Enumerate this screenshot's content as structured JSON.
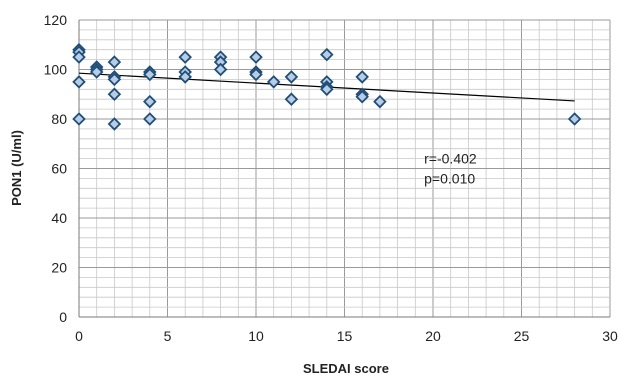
{
  "chart_data": {
    "type": "scatter",
    "title": "",
    "xlabel": "SLEDAI score",
    "ylabel": "PON1 (U/ml)",
    "xlim": [
      0,
      30
    ],
    "ylim": [
      0,
      120
    ],
    "xticks": [
      0,
      5,
      10,
      15,
      20,
      25,
      30
    ],
    "yticks": [
      0,
      20,
      40,
      60,
      80,
      100,
      120
    ],
    "x_tick_labels": [
      "0",
      "5",
      "10",
      "15",
      "20",
      "25",
      "30"
    ],
    "y_tick_labels": [
      "0",
      "20",
      "40",
      "60",
      "80",
      "100",
      "120"
    ],
    "grid": "major and minor",
    "marker": "diamond",
    "marker_color": "#1f4e79",
    "marker_fill": "#b8cce4",
    "points": [
      {
        "x": 0,
        "y": 108
      },
      {
        "x": 0,
        "y": 107
      },
      {
        "x": 0,
        "y": 105
      },
      {
        "x": 0,
        "y": 95
      },
      {
        "x": 0,
        "y": 80
      },
      {
        "x": 1,
        "y": 101
      },
      {
        "x": 1,
        "y": 100
      },
      {
        "x": 1,
        "y": 99
      },
      {
        "x": 2,
        "y": 103
      },
      {
        "x": 2,
        "y": 97
      },
      {
        "x": 2,
        "y": 96
      },
      {
        "x": 2,
        "y": 90
      },
      {
        "x": 2,
        "y": 78
      },
      {
        "x": 4,
        "y": 99
      },
      {
        "x": 4,
        "y": 98
      },
      {
        "x": 4,
        "y": 87
      },
      {
        "x": 4,
        "y": 80
      },
      {
        "x": 6,
        "y": 105
      },
      {
        "x": 6,
        "y": 99
      },
      {
        "x": 6,
        "y": 97
      },
      {
        "x": 8,
        "y": 105
      },
      {
        "x": 8,
        "y": 103
      },
      {
        "x": 8,
        "y": 100
      },
      {
        "x": 10,
        "y": 105
      },
      {
        "x": 10,
        "y": 99
      },
      {
        "x": 10,
        "y": 98
      },
      {
        "x": 11,
        "y": 95
      },
      {
        "x": 12,
        "y": 97
      },
      {
        "x": 12,
        "y": 88
      },
      {
        "x": 14,
        "y": 106
      },
      {
        "x": 14,
        "y": 95
      },
      {
        "x": 14,
        "y": 93
      },
      {
        "x": 14,
        "y": 92
      },
      {
        "x": 16,
        "y": 97
      },
      {
        "x": 16,
        "y": 90
      },
      {
        "x": 16,
        "y": 89
      },
      {
        "x": 17,
        "y": 87
      },
      {
        "x": 28,
        "y": 80
      }
    ],
    "trendline": {
      "x": [
        0,
        28
      ],
      "y": [
        98.5,
        87.3
      ],
      "color": "#000000"
    },
    "annotations": [
      {
        "text": "r=-0.402",
        "x": 19.5,
        "y": 62
      },
      {
        "text": "p=0.010",
        "x": 19.5,
        "y": 54
      }
    ]
  }
}
